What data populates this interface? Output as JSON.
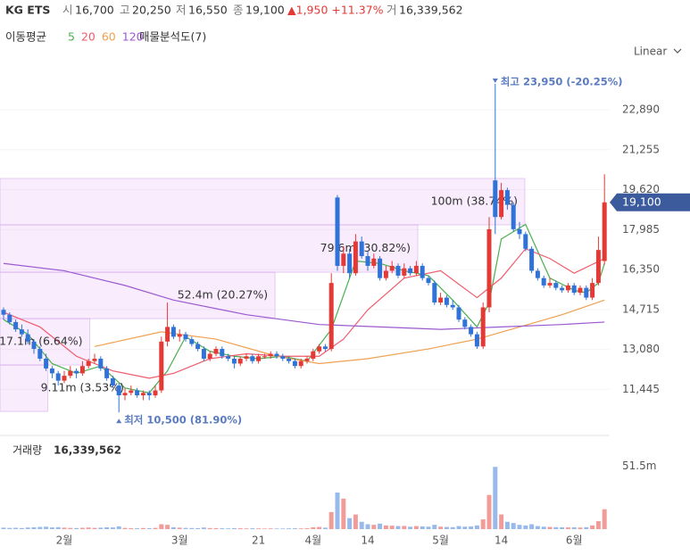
{
  "header": {
    "name": "KG ETS",
    "fields": [
      {
        "label": "시",
        "value": "16,700"
      },
      {
        "label": "고",
        "value": "20,250"
      },
      {
        "label": "저",
        "value": "16,550"
      },
      {
        "label": "종",
        "value": "19,100"
      }
    ],
    "change": "▲1,950 +11.37%",
    "volume_label": "거",
    "volume": "16,339,562"
  },
  "legend": {
    "title": "이동평균",
    "profile": "매물분석도(7)"
  },
  "scale_label": "Linear",
  "chart_data": {
    "type": "candlestick",
    "ylim": [
      9850,
      24280
    ],
    "yticks": [
      {
        "value": 22890,
        "label": "22,890"
      },
      {
        "value": 21255,
        "label": "21,255"
      },
      {
        "value": 19620,
        "label": "19,620"
      },
      {
        "value": 17985,
        "label": "17,985"
      },
      {
        "value": 16350,
        "label": "16,350"
      },
      {
        "value": 14715,
        "label": "14,715"
      },
      {
        "value": 13080,
        "label": "13,080"
      },
      {
        "value": 11445,
        "label": "11,445"
      }
    ],
    "grid": true,
    "up_color": "#e53935",
    "down_color": "#2f73d9",
    "xticks": [
      {
        "value": 10,
        "label": "2월"
      },
      {
        "value": 29,
        "label": "3월"
      },
      {
        "value": 42,
        "label": "21"
      },
      {
        "value": 51,
        "label": "4월"
      },
      {
        "value": 60,
        "label": "14"
      },
      {
        "value": 72,
        "label": "5월"
      },
      {
        "value": 82,
        "label": "14"
      },
      {
        "value": 94,
        "label": "6월"
      }
    ],
    "candles": [
      [
        14700,
        14800,
        14300,
        14500
      ],
      [
        14500,
        14600,
        14100,
        14200
      ],
      [
        14200,
        14300,
        13800,
        13900
      ],
      [
        13900,
        14100,
        13600,
        13700
      ],
      [
        13700,
        13900,
        13300,
        13400
      ],
      [
        13400,
        13500,
        12900,
        13100
      ],
      [
        13100,
        13200,
        12600,
        12700
      ],
      [
        12700,
        12900,
        12200,
        12300
      ],
      [
        12300,
        12400,
        11900,
        12100
      ],
      [
        12100,
        12200,
        11600,
        11800
      ],
      [
        11800,
        12200,
        11700,
        12000
      ],
      [
        12000,
        12400,
        11900,
        12200
      ],
      [
        12200,
        12300,
        11900,
        12100
      ],
      [
        12100,
        12600,
        12000,
        12400
      ],
      [
        12400,
        12700,
        12300,
        12600
      ],
      [
        12600,
        12900,
        12500,
        12700
      ],
      [
        12700,
        12800,
        12200,
        12300
      ],
      [
        12300,
        12400,
        11800,
        11900
      ],
      [
        11900,
        12000,
        11500,
        11600
      ],
      [
        11600,
        11700,
        10500,
        11200
      ],
      [
        11200,
        11500,
        11000,
        11300
      ],
      [
        11300,
        11600,
        11200,
        11400
      ],
      [
        11400,
        11500,
        11100,
        11200
      ],
      [
        11200,
        11400,
        11000,
        11300
      ],
      [
        11300,
        11400,
        11000,
        11200
      ],
      [
        11200,
        11600,
        11100,
        11400
      ],
      [
        11400,
        13600,
        11300,
        13400
      ],
      [
        13400,
        15000,
        13200,
        14000
      ],
      [
        14000,
        14100,
        13500,
        13600
      ],
      [
        13600,
        13900,
        13400,
        13700
      ],
      [
        13700,
        13800,
        13400,
        13500
      ],
      [
        13500,
        13600,
        13200,
        13300
      ],
      [
        13300,
        13400,
        13000,
        13100
      ],
      [
        13100,
        13200,
        12600,
        12700
      ],
      [
        12700,
        13000,
        12600,
        12900
      ],
      [
        12900,
        13200,
        12800,
        13100
      ],
      [
        13100,
        13200,
        12700,
        12800
      ],
      [
        12800,
        12900,
        12600,
        12700
      ],
      [
        12700,
        12800,
        12300,
        12500
      ],
      [
        12500,
        12800,
        12400,
        12700
      ],
      [
        12700,
        12900,
        12600,
        12800
      ],
      [
        12800,
        12900,
        12500,
        12600
      ],
      [
        12600,
        12900,
        12500,
        12800
      ],
      [
        12800,
        12900,
        12700,
        12800
      ],
      [
        12800,
        13000,
        12700,
        12900
      ],
      [
        12900,
        13000,
        12700,
        12800
      ],
      [
        12800,
        12900,
        12600,
        12700
      ],
      [
        12700,
        12800,
        12500,
        12600
      ],
      [
        12600,
        12700,
        12300,
        12400
      ],
      [
        12400,
        12700,
        12300,
        12600
      ],
      [
        12600,
        12800,
        12500,
        12700
      ],
      [
        12700,
        13100,
        12600,
        13000
      ],
      [
        13000,
        13300,
        12900,
        13200
      ],
      [
        13200,
        13300,
        13000,
        13100
      ],
      [
        13100,
        16200,
        13000,
        15800
      ],
      [
        19300,
        19400,
        16300,
        16500
      ],
      [
        16500,
        17300,
        16200,
        17000
      ],
      [
        17000,
        17200,
        16000,
        16200
      ],
      [
        16200,
        17800,
        16100,
        17500
      ],
      [
        17500,
        17700,
        16800,
        16900
      ],
      [
        16900,
        17100,
        16300,
        16500
      ],
      [
        16500,
        17000,
        16400,
        16800
      ],
      [
        16800,
        16900,
        15900,
        16000
      ],
      [
        16000,
        16500,
        15900,
        16300
      ],
      [
        16300,
        16700,
        16200,
        16500
      ],
      [
        16500,
        16600,
        16000,
        16100
      ],
      [
        16100,
        16600,
        16000,
        16400
      ],
      [
        16400,
        16500,
        16100,
        16200
      ],
      [
        16200,
        16700,
        16100,
        16500
      ],
      [
        16500,
        16600,
        15900,
        16000
      ],
      [
        16000,
        16100,
        15700,
        15800
      ],
      [
        15800,
        15900,
        14900,
        15000
      ],
      [
        15000,
        15400,
        14900,
        15200
      ],
      [
        15200,
        15300,
        14800,
        14900
      ],
      [
        14900,
        15100,
        14700,
        14800
      ],
      [
        14800,
        14900,
        14200,
        14300
      ],
      [
        14300,
        14400,
        13900,
        14000
      ],
      [
        14000,
        14100,
        13600,
        13700
      ],
      [
        13700,
        13800,
        13100,
        13200
      ],
      [
        13200,
        15000,
        13100,
        14800
      ],
      [
        14800,
        18500,
        14600,
        18000
      ],
      [
        20000,
        23950,
        17800,
        18500
      ],
      [
        18500,
        19900,
        18400,
        19600
      ],
      [
        19600,
        19700,
        18800,
        19000
      ],
      [
        19000,
        19100,
        17900,
        18000
      ],
      [
        18000,
        18300,
        17600,
        17800
      ],
      [
        17800,
        17900,
        17100,
        17200
      ],
      [
        17200,
        17300,
        16200,
        16300
      ],
      [
        16300,
        16400,
        15900,
        16000
      ],
      [
        16000,
        16100,
        15600,
        15700
      ],
      [
        15700,
        16000,
        15600,
        15800
      ],
      [
        15800,
        15900,
        15500,
        15600
      ],
      [
        15600,
        15700,
        15400,
        15500
      ],
      [
        15500,
        15800,
        15400,
        15700
      ],
      [
        15700,
        15800,
        15300,
        15400
      ],
      [
        15400,
        15700,
        15300,
        15600
      ],
      [
        15600,
        15700,
        15100,
        15200
      ],
      [
        15200,
        16000,
        15100,
        15800
      ],
      [
        15800,
        17700,
        15700,
        17150
      ],
      [
        16700,
        20250,
        16550,
        19100
      ]
    ],
    "moving_averages": [
      {
        "name": "5",
        "color": "#4caf50",
        "x": [
          0,
          4,
          8,
          12,
          16,
          20,
          24,
          27,
          30,
          34,
          38,
          42,
          46,
          50,
          54,
          58,
          62,
          66,
          70,
          74,
          78,
          80,
          82,
          86,
          90,
          94,
          96,
          98,
          99
        ],
        "values": [
          14300,
          13700,
          12500,
          12100,
          12400,
          11500,
          11300,
          12200,
          13600,
          13000,
          12800,
          12700,
          12800,
          12600,
          13900,
          16700,
          16600,
          16300,
          16100,
          15100,
          14000,
          15000,
          17600,
          18200,
          16000,
          15500,
          15400,
          15800,
          16600
        ]
      },
      {
        "name": "20",
        "color": "#ef5b6b",
        "x": [
          0,
          6,
          12,
          18,
          24,
          28,
          34,
          40,
          46,
          52,
          56,
          60,
          66,
          72,
          78,
          82,
          86,
          90,
          94,
          99
        ],
        "values": [
          14600,
          14000,
          12800,
          12200,
          11900,
          12100,
          12700,
          12900,
          12800,
          12800,
          13500,
          14700,
          16000,
          16300,
          15200,
          16000,
          17200,
          16800,
          16200,
          16800
        ]
      },
      {
        "name": "60",
        "color": "#f0a050",
        "x": [
          15,
          26,
          35,
          45,
          52,
          60,
          70,
          78,
          85,
          92,
          99
        ],
        "values": [
          13200,
          13800,
          13500,
          12800,
          12500,
          12700,
          13100,
          13500,
          14000,
          14500,
          15100
        ]
      },
      {
        "name": "120",
        "color": "#9b59d0",
        "x": [
          0,
          10,
          20,
          28,
          40,
          52,
          62,
          72,
          82,
          92,
          99
        ],
        "values": [
          16600,
          16300,
          15700,
          15100,
          14500,
          14100,
          14000,
          13900,
          14000,
          14100,
          14200
        ]
      }
    ],
    "volume_profile": [
      {
        "low": 18180,
        "high": 20080,
        "volume": 100,
        "label": "100m (38.74%)"
      },
      {
        "low": 16240,
        "high": 18180,
        "volume": 79.6,
        "label": "79.6m (30.82%)"
      },
      {
        "low": 14340,
        "high": 16240,
        "volume": 52.4,
        "label": "52.4m (20.27%)"
      },
      {
        "low": 12440,
        "high": 14340,
        "volume": 17.1,
        "label": "17.1m (6.64%)"
      },
      {
        "low": 10540,
        "high": 12440,
        "volume": 9.11,
        "label": "9.11m (3.53%)"
      }
    ],
    "annotations": [
      {
        "index": 81,
        "value": 23950,
        "kind": "high",
        "label": "최고 23,950 (-20.25%)"
      },
      {
        "index": 19,
        "value": 10500,
        "kind": "low",
        "label": "최저 10,500 (81.90%)"
      }
    ],
    "last_price": {
      "value": 19100,
      "label": "19,100"
    },
    "volume_title": "거래량",
    "volume_total": "16,339,562",
    "vlim": [
      0,
      68
    ],
    "vticks": [
      {
        "value": 51.5,
        "label": "51.5m"
      }
    ],
    "volumes": [
      1.2,
      1.0,
      1.1,
      0.9,
      1.3,
      1.5,
      1.8,
      2.0,
      1.4,
      1.6,
      1.2,
      1.0,
      0.9,
      1.1,
      1.3,
      1.0,
      1.2,
      1.5,
      1.4,
      2.2,
      1.0,
      0.8,
      0.7,
      0.9,
      0.8,
      1.0,
      4.0,
      3.5,
      1.5,
      1.2,
      1.0,
      0.9,
      0.8,
      1.3,
      0.9,
      0.8,
      0.7,
      0.6,
      0.8,
      0.7,
      0.6,
      0.7,
      0.6,
      0.5,
      0.6,
      0.5,
      0.5,
      0.6,
      0.7,
      0.6,
      0.7,
      1.5,
      1.8,
      1.2,
      14.0,
      30.0,
      25.0,
      9.0,
      12.0,
      6.0,
      4.0,
      3.5,
      4.5,
      3.0,
      2.8,
      2.5,
      2.6,
      2.0,
      2.5,
      2.2,
      2.0,
      3.5,
      2.0,
      1.8,
      1.6,
      2.5,
      2.0,
      2.2,
      3.0,
      8.0,
      28.0,
      51.0,
      12.0,
      6.0,
      5.0,
      3.5,
      3.0,
      4.0,
      2.5,
      2.0,
      1.8,
      1.6,
      1.5,
      1.4,
      1.5,
      1.3,
      1.6,
      3.0,
      6.5,
      16.3
    ]
  }
}
